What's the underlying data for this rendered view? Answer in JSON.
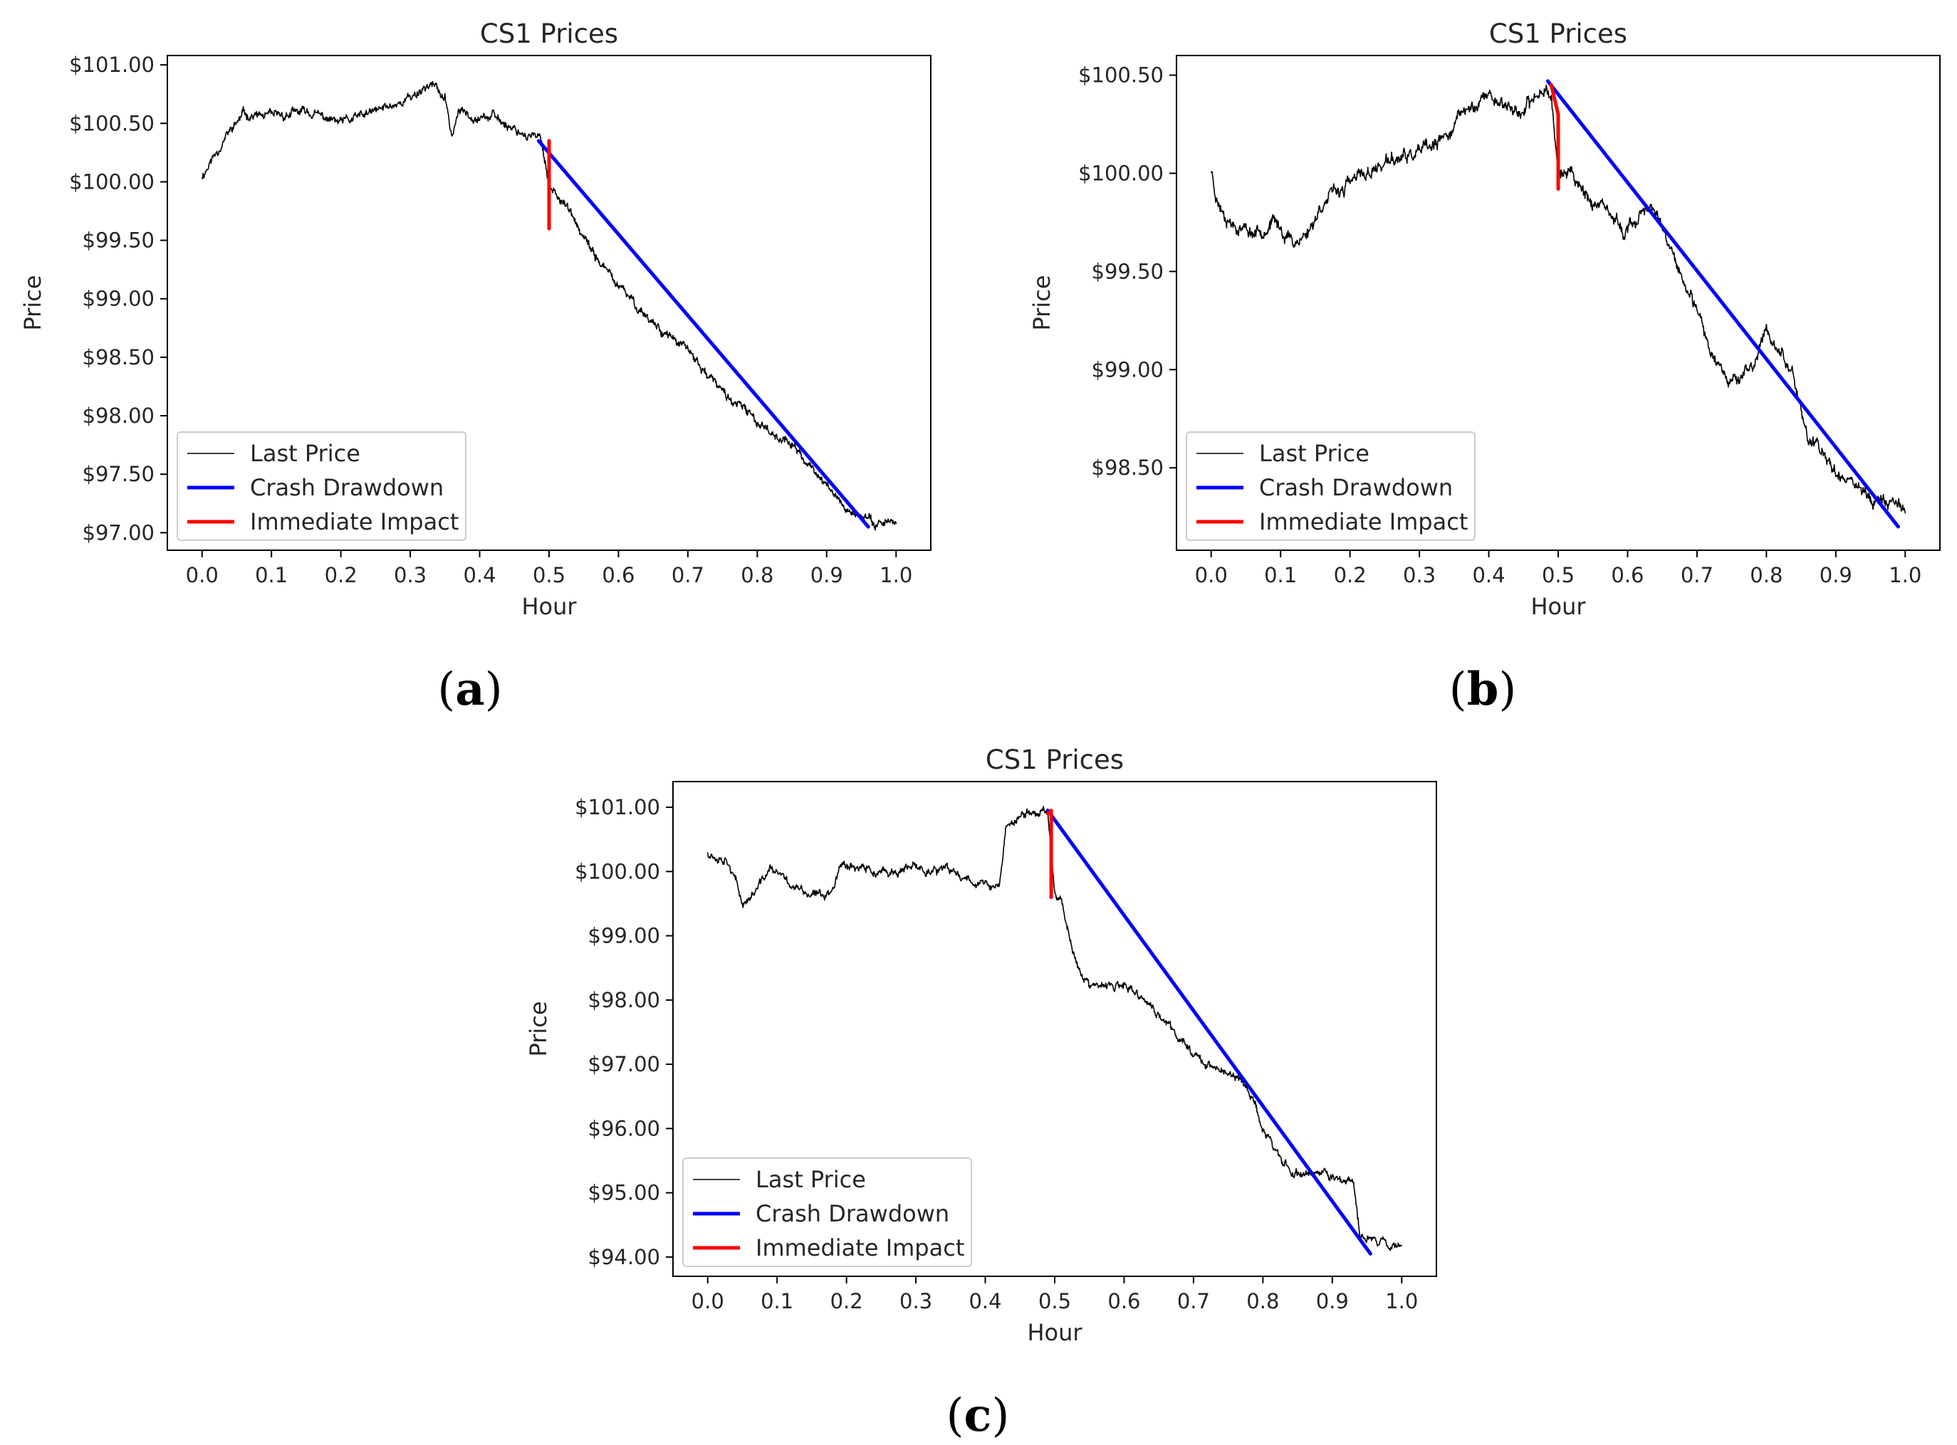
{
  "chart_data": [
    {
      "type": "line",
      "title": "CS1 Prices",
      "xlabel": "Hour",
      "ylabel": "Price",
      "caption": "a",
      "xlim": [
        -0.05,
        1.05
      ],
      "ylim": [
        96.85,
        101.08
      ],
      "xticks": [
        0.0,
        0.1,
        0.2,
        0.3,
        0.4,
        0.5,
        0.6,
        0.7,
        0.8,
        0.9,
        1.0
      ],
      "xtick_labels": [
        "0.0",
        "0.1",
        "0.2",
        "0.3",
        "0.4",
        "0.5",
        "0.6",
        "0.7",
        "0.8",
        "0.9",
        "1.0"
      ],
      "yticks": [
        97.0,
        97.5,
        98.0,
        98.5,
        99.0,
        99.5,
        100.0,
        100.5,
        101.0
      ],
      "ytick_labels": [
        "$97.00",
        "$97.50",
        "$98.00",
        "$98.50",
        "$99.00",
        "$99.50",
        "$100.00",
        "$100.50",
        "$101.00"
      ],
      "legend": {
        "location": "lower-left",
        "entries": [
          "Last Price",
          "Crash Drawdown",
          "Immediate Impact"
        ]
      },
      "series": [
        {
          "name": "Last Price",
          "color": "#000000",
          "seed": 11,
          "noise": 0.035,
          "x": [
            0.0,
            0.03,
            0.06,
            0.1,
            0.15,
            0.2,
            0.25,
            0.3,
            0.33,
            0.35,
            0.36,
            0.37,
            0.42,
            0.47,
            0.49,
            0.5,
            0.52,
            0.55,
            0.6,
            0.65,
            0.7,
            0.75,
            0.8,
            0.85,
            0.9,
            0.93,
            0.96,
            1.0
          ],
          "y": [
            100.05,
            100.35,
            100.58,
            100.55,
            100.6,
            100.5,
            100.6,
            100.72,
            100.85,
            100.7,
            100.4,
            100.6,
            100.55,
            100.4,
            100.35,
            99.95,
            99.85,
            99.5,
            99.1,
            98.8,
            98.55,
            98.2,
            97.95,
            97.75,
            97.4,
            97.2,
            97.1,
            97.1
          ]
        },
        {
          "name": "Crash Drawdown",
          "color": "#0000ff",
          "x": [
            0.485,
            0.96
          ],
          "y": [
            100.35,
            97.05
          ]
        },
        {
          "name": "Immediate Impact",
          "color": "#ff0000",
          "x": [
            0.5,
            0.5
          ],
          "y": [
            100.35,
            99.6
          ]
        }
      ]
    },
    {
      "type": "line",
      "title": "CS1 Prices",
      "xlabel": "Hour",
      "ylabel": "Price",
      "caption": "b",
      "xlim": [
        -0.05,
        1.05
      ],
      "ylim": [
        98.08,
        100.6
      ],
      "xticks": [
        0.0,
        0.1,
        0.2,
        0.3,
        0.4,
        0.5,
        0.6,
        0.7,
        0.8,
        0.9,
        1.0
      ],
      "xtick_labels": [
        "0.0",
        "0.1",
        "0.2",
        "0.3",
        "0.4",
        "0.5",
        "0.6",
        "0.7",
        "0.8",
        "0.9",
        "1.0"
      ],
      "yticks": [
        98.5,
        99.0,
        99.5,
        100.0,
        100.5
      ],
      "ytick_labels": [
        "$98.50",
        "$99.00",
        "$99.50",
        "$100.00",
        "$100.50"
      ],
      "legend": {
        "location": "lower-left",
        "entries": [
          "Last Price",
          "Crash Drawdown",
          "Immediate Impact"
        ]
      },
      "series": [
        {
          "name": "Last Price",
          "color": "#000000",
          "seed": 23,
          "noise": 0.03,
          "x": [
            0.0,
            0.01,
            0.03,
            0.06,
            0.09,
            0.12,
            0.14,
            0.16,
            0.2,
            0.25,
            0.3,
            0.33,
            0.36,
            0.4,
            0.45,
            0.48,
            0.49,
            0.5,
            0.52,
            0.55,
            0.6,
            0.63,
            0.65,
            0.68,
            0.72,
            0.75,
            0.78,
            0.8,
            0.82,
            0.84,
            0.86,
            0.9,
            0.95,
            1.0
          ],
          "y": [
            100.02,
            99.85,
            99.75,
            99.7,
            99.75,
            99.65,
            99.7,
            99.85,
            99.95,
            100.05,
            100.1,
            100.15,
            100.3,
            100.4,
            100.3,
            100.45,
            100.4,
            100.0,
            100.0,
            99.85,
            99.7,
            99.85,
            99.7,
            99.45,
            99.1,
            98.95,
            99.0,
            99.2,
            99.1,
            98.95,
            98.65,
            98.5,
            98.35,
            98.3
          ]
        },
        {
          "name": "Crash Drawdown",
          "color": "#0000ff",
          "x": [
            0.485,
            0.99
          ],
          "y": [
            100.47,
            98.2
          ]
        },
        {
          "name": "Immediate Impact",
          "color": "#ff0000",
          "x": [
            0.49,
            0.5,
            0.5
          ],
          "y": [
            100.45,
            100.3,
            99.92
          ]
        }
      ]
    },
    {
      "type": "line",
      "title": "CS1 Prices",
      "xlabel": "Hour",
      "ylabel": "Price",
      "caption": "c",
      "xlim": [
        -0.05,
        1.05
      ],
      "ylim": [
        93.7,
        101.4
      ],
      "xticks": [
        0.0,
        0.1,
        0.2,
        0.3,
        0.4,
        0.5,
        0.6,
        0.7,
        0.8,
        0.9,
        1.0
      ],
      "xtick_labels": [
        "0.0",
        "0.1",
        "0.2",
        "0.3",
        "0.4",
        "0.5",
        "0.6",
        "0.7",
        "0.8",
        "0.9",
        "1.0"
      ],
      "yticks": [
        94.0,
        95.0,
        96.0,
        97.0,
        98.0,
        99.0,
        100.0,
        101.0
      ],
      "ytick_labels": [
        "$94.00",
        "$95.00",
        "$96.00",
        "$97.00",
        "$98.00",
        "$99.00",
        "$100.00",
        "$101.00"
      ],
      "legend": {
        "location": "lower-left",
        "entries": [
          "Last Price",
          "Crash Drawdown",
          "Immediate Impact"
        ]
      },
      "series": [
        {
          "name": "Last Price",
          "color": "#000000",
          "seed": 37,
          "noise": 0.06,
          "x": [
            0.0,
            0.03,
            0.05,
            0.07,
            0.09,
            0.12,
            0.15,
            0.18,
            0.19,
            0.21,
            0.25,
            0.3,
            0.35,
            0.4,
            0.41,
            0.42,
            0.43,
            0.46,
            0.49,
            0.5,
            0.51,
            0.53,
            0.55,
            0.6,
            0.63,
            0.68,
            0.72,
            0.76,
            0.78,
            0.8,
            0.84,
            0.88,
            0.92,
            0.93,
            0.94,
            0.96,
            1.0
          ],
          "y": [
            100.3,
            100.2,
            99.5,
            99.7,
            100.05,
            99.8,
            99.6,
            99.7,
            100.15,
            100.1,
            99.95,
            100.05,
            100.0,
            99.8,
            99.75,
            99.75,
            100.7,
            100.9,
            100.95,
            99.7,
            99.55,
            98.6,
            98.2,
            98.2,
            98.0,
            97.4,
            97.0,
            96.8,
            96.6,
            96.0,
            95.3,
            95.3,
            95.2,
            95.15,
            94.3,
            94.3,
            94.15
          ]
        },
        {
          "name": "Crash Drawdown",
          "color": "#0000ff",
          "x": [
            0.49,
            0.955
          ],
          "y": [
            100.95,
            94.05
          ]
        },
        {
          "name": "Immediate Impact",
          "color": "#ff0000",
          "x": [
            0.49,
            0.495,
            0.495
          ],
          "y": [
            100.9,
            100.95,
            99.6
          ]
        }
      ]
    }
  ]
}
